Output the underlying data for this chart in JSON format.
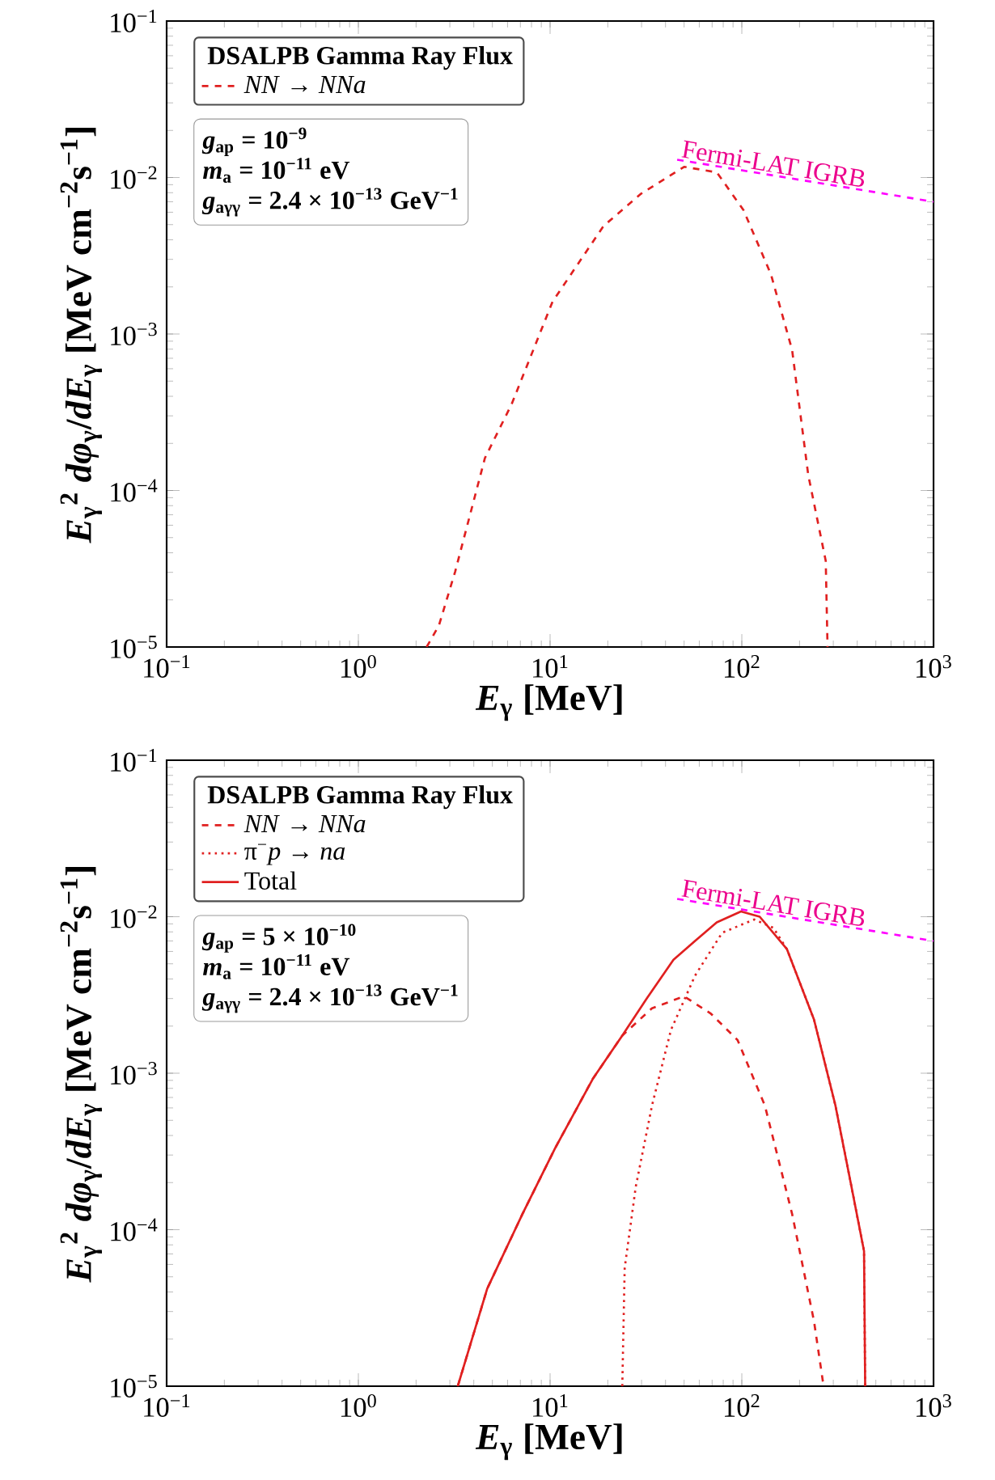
{
  "chart_data": [
    {
      "type": "line",
      "legend_title": "**DSALPB Gamma Ray Flux**",
      "xlabel": "*E*$_{γ}$ [MeV]",
      "ylabel": "*E*$_{γ}$$^{2}$ *dφ*$_{γ}$/*dE*$_{γ}$ [MeV cm$^{−2}$s$^{−1}$]",
      "log": "xy",
      "legend": "top left",
      "xlim": [
        0.1,
        1000
      ],
      "ylim": [
        1e-05,
        0.1
      ],
      "xticks": [
        {
          "value": 0.1,
          "label": "10$^{−1}$"
        },
        {
          "value": 1,
          "label": "10$^{0}$"
        },
        {
          "value": 10,
          "label": "10$^{1}$"
        },
        {
          "value": 100,
          "label": "10$^{2}$"
        },
        {
          "value": 1000,
          "label": "10$^{3}$"
        }
      ],
      "yticks": [
        {
          "value": 1e-05,
          "label": "10$^{−5}$"
        },
        {
          "value": 0.0001,
          "label": "10$^{−4}$"
        },
        {
          "value": 0.001,
          "label": "10$^{−3}$"
        },
        {
          "value": 0.01,
          "label": "10$^{−2}$"
        },
        {
          "value": 0.1,
          "label": "10$^{−1}$"
        }
      ],
      "annotations": [
        "*g*$_{ap}$ = 10$^{−9}$",
        "*m*$_{a}$ = 10$^{−11}$ eV",
        "*g*$_{aγγ}$ = 2.4 × 10$^{−13}$ GeV$^{−1}$",
        {
          "text": "Fermi-LAT IGRB",
          "x": 46,
          "y": 0.013
        }
      ],
      "series": [
        {
          "name": "*NN* → *NNa*",
          "color": "#e02020",
          "line_style": "dashed",
          "x": [
            2.27,
            2.63,
            3.2,
            4.57,
            6.3,
            10.3,
            19,
            29.9,
            50,
            74,
            102,
            142,
            183,
            222,
            274,
            280
          ],
          "values": [
            1e-05,
            1.37e-05,
            3.04e-05,
            0.000161,
            0.000356,
            0.00161,
            0.0049,
            0.0079,
            0.0117,
            0.0108,
            0.0062,
            0.0024,
            0.00079,
            0.000126,
            3.55e-05,
            1e-05
          ]
        },
        {
          "color": "#ff00ff",
          "line_style": "dashed",
          "x": [
            46,
            1000
          ],
          "values": [
            0.013,
            0.007
          ]
        }
      ]
    },
    {
      "type": "line",
      "legend_title": "**DSALPB Gamma Ray Flux**",
      "xlabel": "*E*$_{γ}$ [MeV]",
      "ylabel": "*E*$_{γ}$$^{2}$ *dφ*$_{γ}$/*dE*$_{γ}$ [MeV cm$^{−2}$s$^{−1}$]",
      "log": "xy",
      "legend": "top left",
      "xlim": [
        0.1,
        1000
      ],
      "ylim": [
        1e-05,
        0.1
      ],
      "xticks": [
        {
          "value": 0.1,
          "label": "10$^{−1}$"
        },
        {
          "value": 1,
          "label": "10$^{0}$"
        },
        {
          "value": 10,
          "label": "10$^{1}$"
        },
        {
          "value": 100,
          "label": "10$^{2}$"
        },
        {
          "value": 1000,
          "label": "10$^{3}$"
        }
      ],
      "yticks": [
        {
          "value": 1e-05,
          "label": "10$^{−5}$"
        },
        {
          "value": 0.0001,
          "label": "10$^{−4}$"
        },
        {
          "value": 0.001,
          "label": "10$^{−3}$"
        },
        {
          "value": 0.01,
          "label": "10$^{−2}$"
        },
        {
          "value": 0.1,
          "label": "10$^{−1}$"
        }
      ],
      "annotations": [
        "*g*$_{ap}$ = 5 × 10$^{−10}$",
        "*m*$_{a}$ = 10$^{−11}$ eV",
        "*g*$_{aγγ}$ = 2.4 × 10$^{−13}$ GeV$^{−1}$",
        {
          "text": "Fermi-LAT IGRB",
          "x": 46,
          "y": 0.013
        }
      ],
      "series": [
        {
          "name": "*NN* → *NNa*",
          "color": "#e02020",
          "line_style": "dashed",
          "x": [
            3.3,
            4.7,
            7.2,
            10.6,
            16.7,
            23.8,
            34,
            50,
            69,
            95,
            132,
            183,
            238,
            267
          ],
          "values": [
            1e-05,
            4.2e-05,
            0.000127,
            0.00033,
            0.00092,
            0.00174,
            0.0026,
            0.0031,
            0.0024,
            0.00163,
            0.00062,
            0.000126,
            2.6e-05,
            1e-05
          ]
        },
        {
          "name": "π$^{−}$*p* → *na*",
          "color": "#e02020",
          "line_style": "dotted",
          "x": [
            23.8,
            24.5,
            28,
            34,
            42.7,
            57,
            79,
            116,
            146,
            172,
            238,
            308,
            373,
            434,
            440
          ],
          "values": [
            1e-05,
            5.7e-05,
            0.000189,
            0.00062,
            0.00189,
            0.0042,
            0.0079,
            0.0096,
            0.0085,
            0.0062,
            0.0022,
            0.00062,
            0.000189,
            7.3e-05,
            1e-05
          ]
        },
        {
          "name": "Total",
          "color": "#e02020",
          "line_style": "solid",
          "x": [
            3.3,
            4.7,
            7.2,
            10.6,
            16.7,
            23.8,
            31.9,
            44,
            57,
            74,
            99,
            124,
            172,
            238,
            308,
            373,
            434,
            440
          ],
          "values": [
            1e-05,
            4.2e-05,
            0.000127,
            0.00033,
            0.00092,
            0.00174,
            0.003,
            0.0053,
            0.007,
            0.0092,
            0.0108,
            0.01,
            0.0062,
            0.0022,
            0.00062,
            0.000189,
            7.3e-05,
            1e-05
          ]
        },
        {
          "color": "#ff00ff",
          "line_style": "dashed",
          "x": [
            46,
            1000
          ],
          "values": [
            0.013,
            0.007
          ]
        }
      ]
    }
  ]
}
